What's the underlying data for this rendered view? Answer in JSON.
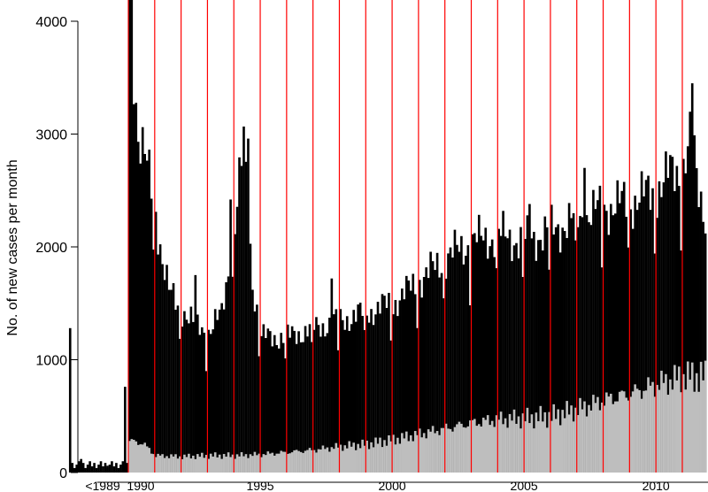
{
  "chart_data": {
    "type": "bar",
    "title": "",
    "xlabel": "",
    "ylabel": "No. of new cases per month",
    "ylim": [
      0,
      4000
    ],
    "y_ticks": [
      0,
      1000,
      2000,
      3000,
      4000
    ],
    "y_tick_labels": [
      "0",
      "1000",
      "2000",
      "3000",
      "4000"
    ],
    "x_ticks": [
      {
        "label": "<1989",
        "month": -24
      },
      {
        "label": "1990",
        "month": 0
      },
      {
        "label": "1995",
        "month": 60
      },
      {
        "label": "2000",
        "month": 120
      },
      {
        "label": "2005",
        "month": 180
      },
      {
        "label": "2010",
        "month": 240
      }
    ],
    "x_domain_months": [
      -28,
      263
    ],
    "x_axis_origin": "1990-01",
    "year_lines_months": [
      0,
      12,
      24,
      36,
      48,
      60,
      72,
      84,
      96,
      108,
      120,
      132,
      144,
      156,
      168,
      180,
      192,
      204,
      216,
      228,
      240,
      252
    ],
    "year_line_color": "#ff0000",
    "stacked": false,
    "series": [
      {
        "color": "#000000",
        "pre_1990": [
          {
            "month": -27,
            "value": 1280
          },
          {
            "month": -22,
            "value": 120
          },
          {
            "month": -10,
            "value": 60
          },
          {
            "month": -2,
            "value": 760
          }
        ],
        "anchors": [
          [
            0,
            4200
          ],
          [
            2,
            3650
          ],
          [
            4,
            3000
          ],
          [
            8,
            2700
          ],
          [
            12,
            2300
          ],
          [
            15,
            1900
          ],
          [
            18,
            1600
          ],
          [
            22,
            1470
          ],
          [
            24,
            1450
          ],
          [
            30,
            1300
          ],
          [
            36,
            1250
          ],
          [
            42,
            1400
          ],
          [
            48,
            2200
          ],
          [
            52,
            2900
          ],
          [
            56,
            1700
          ],
          [
            60,
            1200
          ],
          [
            72,
            1200
          ],
          [
            84,
            1280
          ],
          [
            96,
            1350
          ],
          [
            108,
            1420
          ],
          [
            120,
            1500
          ],
          [
            132,
            1700
          ],
          [
            144,
            1900
          ],
          [
            156,
            2050
          ],
          [
            168,
            2100
          ],
          [
            180,
            2050
          ],
          [
            192,
            2150
          ],
          [
            204,
            2250
          ],
          [
            216,
            2350
          ],
          [
            228,
            2400
          ],
          [
            240,
            2500
          ],
          [
            246,
            2650
          ],
          [
            252,
            2700
          ],
          [
            256,
            3000
          ],
          [
            258,
            2600
          ],
          [
            262,
            2300
          ]
        ],
        "spikes": [
          {
            "month": 1,
            "value": 4300
          },
          {
            "month": 54,
            "value": 2960
          },
          {
            "month": 46,
            "value": 2420
          },
          {
            "month": 256,
            "value": 3450
          },
          {
            "month": 252,
            "value": 2780
          },
          {
            "month": 30,
            "value": 1750
          },
          {
            "month": 92,
            "value": 1720
          },
          {
            "month": 182,
            "value": 2380
          },
          {
            "month": 207,
            "value": 2700
          }
        ]
      },
      {
        "color": "#bebebe",
        "anchors": [
          [
            0,
            280
          ],
          [
            6,
            260
          ],
          [
            12,
            150
          ],
          [
            24,
            140
          ],
          [
            36,
            150
          ],
          [
            48,
            150
          ],
          [
            60,
            160
          ],
          [
            72,
            180
          ],
          [
            84,
            200
          ],
          [
            96,
            230
          ],
          [
            108,
            250
          ],
          [
            120,
            290
          ],
          [
            132,
            340
          ],
          [
            144,
            390
          ],
          [
            156,
            440
          ],
          [
            168,
            470
          ],
          [
            180,
            480
          ],
          [
            192,
            500
          ],
          [
            204,
            560
          ],
          [
            216,
            640
          ],
          [
            228,
            700
          ],
          [
            240,
            780
          ],
          [
            252,
            850
          ],
          [
            262,
            850
          ]
        ]
      }
    ]
  }
}
